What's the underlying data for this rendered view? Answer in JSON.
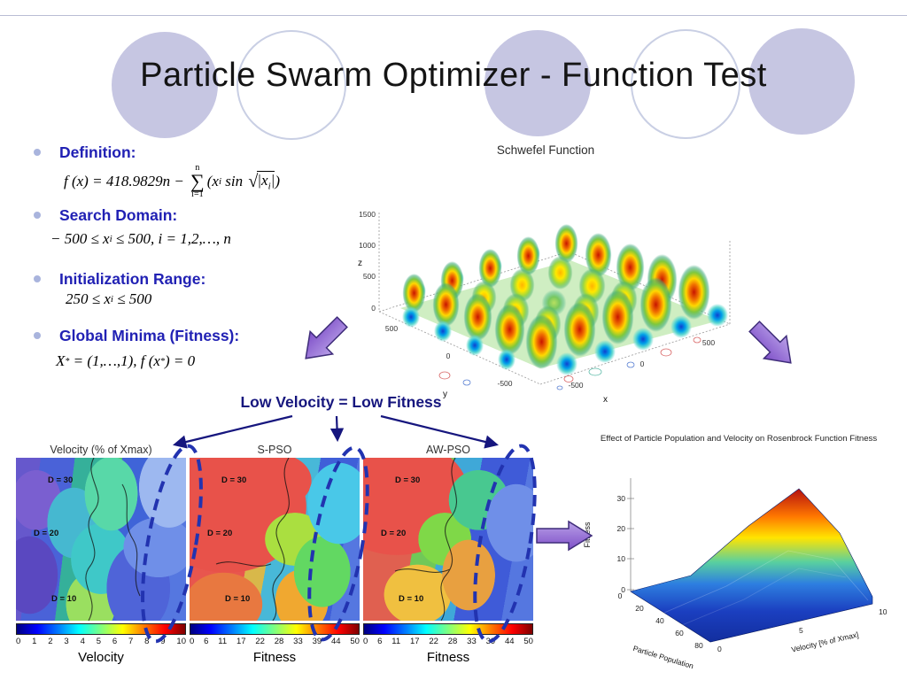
{
  "slide": {
    "title": "Particle Swarm Optimizer - Function Test",
    "callout": "Low Velocity = Low Fitness"
  },
  "bullets": {
    "definition": {
      "label": "Definition:",
      "pre": "f (x) = 418.9829n − ",
      "sum_top": "n",
      "sum_sym": "∑",
      "sum_bot": "i=1",
      "t1": "(x",
      "sub1": "i",
      "t2": " sin ",
      "sqrt": "√",
      "t3": "|x",
      "sub2": "i",
      "t4": "|",
      "t5": ")"
    },
    "search": {
      "label": "Search Domain:",
      "t1": "− 500 ≤ x",
      "sub1": "i",
      "t2": " ≤ 500, i = 1,2,…, n"
    },
    "init": {
      "label": "Initialization Range:",
      "t1": "250 ≤ x",
      "sub1": "i",
      "t2": " ≤ 500"
    },
    "minima": {
      "label": "Global Minima (Fitness):",
      "t1": "X",
      "sup1": "*",
      "t2": " = (1,…,1), f (x",
      "sup2": "*",
      "t3": ") = 0"
    }
  },
  "schwefel": {
    "title": "Schwefel Function",
    "xlabel": "x",
    "ylabel": "y",
    "zlabel": "z",
    "z_ticks": [
      "1500",
      "1000",
      "500",
      "0"
    ],
    "x_ticks": [
      "-500",
      "0",
      "500"
    ],
    "y_ticks": [
      "500",
      "0",
      "-500"
    ]
  },
  "heatmap_figure": {
    "panels": [
      {
        "title": "Velocity (% of Xmax)",
        "d_labels": [
          "D = 30",
          "D = 20",
          "D = 10"
        ],
        "ticks": [
          "0",
          "1",
          "2",
          "3",
          "4",
          "5",
          "6",
          "7",
          "8",
          "9",
          "10"
        ],
        "axis_label": "Velocity"
      },
      {
        "title": "S-PSO",
        "d_labels": [
          "D = 30",
          "D = 20",
          "D = 10"
        ],
        "ticks": [
          "0",
          "6",
          "11",
          "17",
          "22",
          "28",
          "33",
          "39",
          "44",
          "50"
        ],
        "axis_label": "Fitness"
      },
      {
        "title": "AW-PSO",
        "d_labels": [
          "D = 30",
          "D = 20",
          "D = 10"
        ],
        "ticks": [
          "0",
          "6",
          "11",
          "17",
          "22",
          "28",
          "33",
          "39",
          "44",
          "50"
        ],
        "axis_label": "Fitness"
      }
    ]
  },
  "rosenbrock": {
    "title": "Effect of Particle Population and Velocity on Rosenbrock Function Fitness",
    "xlabel": "Particle Population",
    "ylabel": "Velocity [% of Xmax]",
    "zlabel": "Fitness",
    "x_ticks": [
      "0",
      "20",
      "40",
      "60",
      "80"
    ],
    "y_ticks": [
      "0",
      "5",
      "10"
    ],
    "z_ticks": [
      "30",
      "20",
      "10",
      "0"
    ]
  }
}
